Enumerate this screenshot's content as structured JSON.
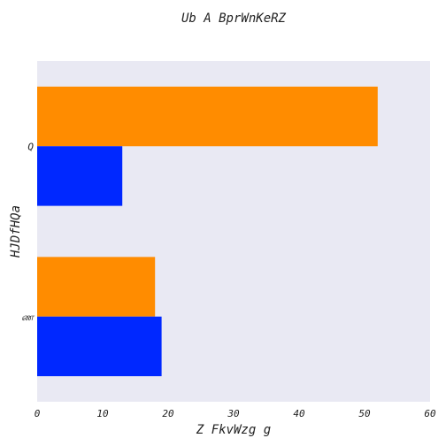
{
  "chart_data": {
    "type": "bar",
    "orientation": "horizontal",
    "title": "Ub A BprWnKeRZ",
    "xlabel": "Z FkvWzg g",
    "ylabel": "HJDfHQa",
    "categories": [
      "Q",
      "ண"
    ],
    "series": [
      {
        "values": [
          52,
          18
        ],
        "color": "#ff8c00"
      },
      {
        "values": [
          13,
          19
        ],
        "color": "#0028ff"
      }
    ],
    "xlim": [
      0,
      60
    ],
    "xticks": [
      0,
      10,
      20,
      30,
      40,
      50,
      60
    ],
    "grid": false,
    "plot_background": "#e9e9f3"
  }
}
